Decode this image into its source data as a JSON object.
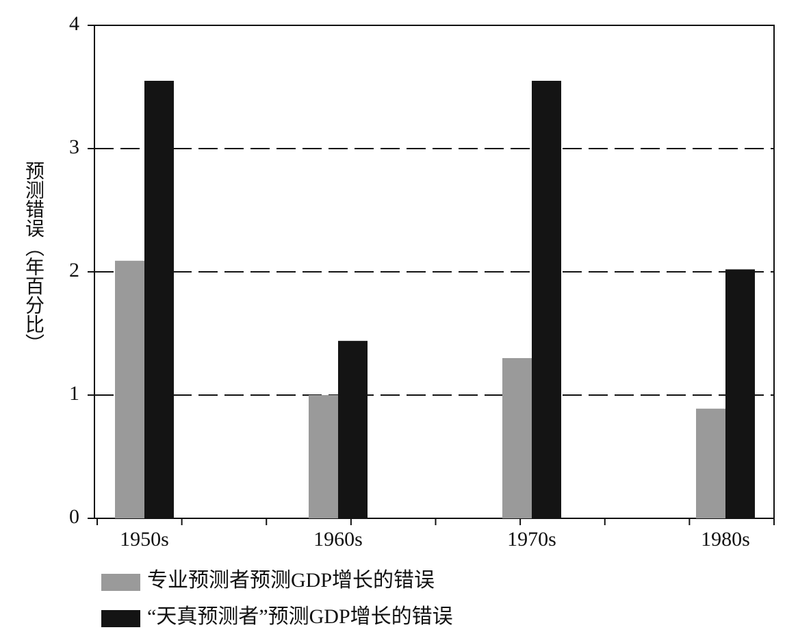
{
  "chart_data": {
    "type": "bar",
    "y_label": "预测错误（年百分比）",
    "categories": [
      "1950s",
      "1960s",
      "1970s",
      "1980s"
    ],
    "series": [
      {
        "name": "专业预测者预测GDP增长的错误",
        "color": "#9a9a9a",
        "values": [
          2.09,
          1.0,
          1.3,
          0.89
        ]
      },
      {
        "name": "“天真预测者”预测GDP增长的错误",
        "color": "#141414",
        "values": [
          3.55,
          1.44,
          3.55,
          2.02
        ]
      }
    ],
    "ylim": [
      0,
      4
    ],
    "yticks": [
      0,
      1,
      2,
      3,
      4
    ],
    "grid": true
  }
}
